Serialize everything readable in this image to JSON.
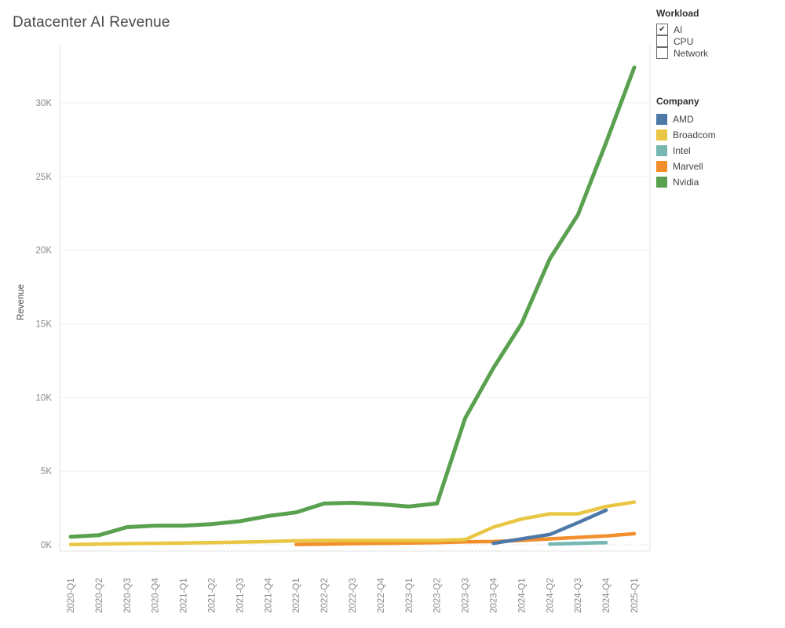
{
  "title": "Datacenter AI Revenue",
  "workload_legend": {
    "title": "Workload",
    "items": [
      {
        "label": "AI",
        "checked": true,
        "mark": "✔"
      },
      {
        "label": "CPU",
        "checked": false,
        "mark": ""
      },
      {
        "label": "Network",
        "checked": false,
        "mark": ""
      }
    ]
  },
  "company_legend": {
    "title": "Company",
    "items": [
      {
        "label": "AMD",
        "color": "#4e79a7"
      },
      {
        "label": "Broadcom",
        "color": "#e9c643"
      },
      {
        "label": "Intel",
        "color": "#76b7b2"
      },
      {
        "label": "Marvell",
        "color": "#f28e2b"
      },
      {
        "label": "Nvidia",
        "color": "#59a14f"
      }
    ]
  },
  "chart_data": {
    "type": "line",
    "title": "Datacenter AI Revenue",
    "xlabel": "",
    "ylabel": "Revenue",
    "grid": true,
    "legend_position": "right",
    "values_unit": "K",
    "ylim_k": [
      0,
      32.5
    ],
    "yticks": [
      "0K",
      "5K",
      "10K",
      "15K",
      "20K",
      "25K",
      "30K"
    ],
    "ytick_values_k": [
      0,
      5,
      10,
      15,
      20,
      25,
      30
    ],
    "categories": [
      "2020-Q1",
      "2020-Q2",
      "2020-Q3",
      "2020-Q4",
      "2021-Q1",
      "2021-Q2",
      "2021-Q3",
      "2021-Q4",
      "2022-Q1",
      "2022-Q2",
      "2022-Q3",
      "2022-Q4",
      "2023-Q1",
      "2023-Q2",
      "2023-Q3",
      "2023-Q4",
      "2024-Q1",
      "2024-Q2",
      "2024-Q3",
      "2024-Q4",
      "2025-Q1"
    ],
    "series": [
      {
        "name": "AMD",
        "color": "#4e79a7",
        "values_k": [
          null,
          null,
          null,
          null,
          null,
          null,
          null,
          null,
          null,
          null,
          null,
          null,
          null,
          null,
          null,
          0.1,
          0.4,
          0.7,
          1.5,
          2.35,
          null
        ]
      },
      {
        "name": "Broadcom",
        "color": "#e9c643",
        "values_k": [
          0.02,
          0.05,
          0.08,
          0.1,
          0.12,
          0.15,
          0.18,
          0.22,
          0.27,
          0.3,
          0.3,
          0.3,
          0.3,
          0.3,
          0.35,
          1.2,
          1.75,
          2.1,
          2.1,
          2.6,
          2.9
        ]
      },
      {
        "name": "Intel",
        "color": "#76b7b2",
        "values_k": [
          null,
          null,
          null,
          null,
          null,
          null,
          null,
          null,
          null,
          null,
          null,
          null,
          null,
          null,
          null,
          null,
          null,
          0.05,
          0.1,
          0.15,
          null
        ]
      },
      {
        "name": "Marvell",
        "color": "#f28e2b",
        "values_k": [
          null,
          null,
          null,
          null,
          null,
          null,
          null,
          null,
          0.02,
          0.05,
          0.08,
          0.1,
          0.12,
          0.15,
          0.2,
          0.22,
          0.3,
          0.4,
          0.5,
          0.6,
          0.75
        ]
      },
      {
        "name": "Nvidia",
        "color": "#59a14f",
        "values_k": [
          0.55,
          0.65,
          1.2,
          1.3,
          1.3,
          1.4,
          1.6,
          1.95,
          2.2,
          2.8,
          2.85,
          2.75,
          2.6,
          2.8,
          8.6,
          12.0,
          15.0,
          19.4,
          22.4,
          27.3,
          32.4
        ]
      }
    ]
  }
}
